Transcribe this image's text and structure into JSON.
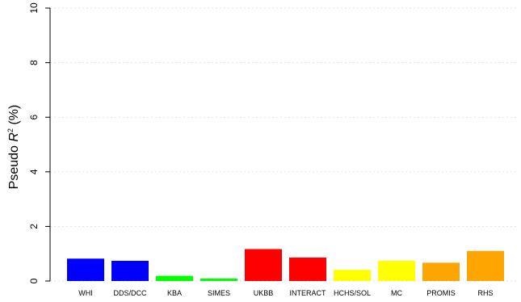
{
  "chart_data": {
    "type": "bar",
    "ylabel_prefix": "Pseudo ",
    "ylabel_var": "R",
    "ylabel_sup": "2",
    "ylabel_suffix": " (%)",
    "ylim": [
      0,
      10
    ],
    "yticks": [
      0,
      2,
      4,
      6,
      8,
      10
    ],
    "grid": true,
    "categories": [
      "WHI",
      "DDS/DCC",
      "KBA",
      "SIMES",
      "UKBB",
      "INTERACT",
      "HCHS/SOL",
      "MC",
      "PROMIS",
      "RHS"
    ],
    "values": [
      0.82,
      0.74,
      0.19,
      0.09,
      1.17,
      0.86,
      0.41,
      0.74,
      0.67,
      1.1
    ],
    "colors": [
      "#0000FF",
      "#0000FF",
      "#00FF00",
      "#00FF00",
      "#FF0000",
      "#FF0000",
      "#FFFF00",
      "#FFFF00",
      "#FFA500",
      "#FFA500"
    ]
  }
}
